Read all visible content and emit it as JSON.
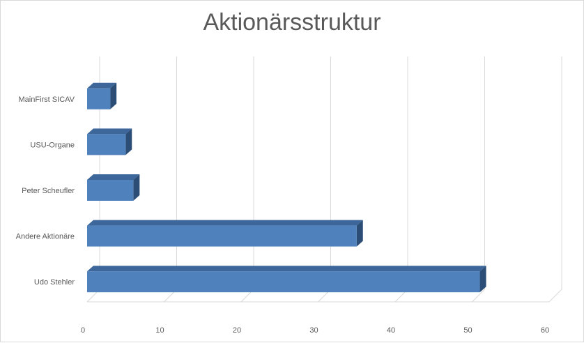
{
  "chart_data": {
    "type": "bar",
    "orientation": "horizontal",
    "style": "3d",
    "title": "Aktionärsstruktur",
    "xlabel": "",
    "ylabel": "",
    "categories": [
      "Udo Stehler",
      "Andere Aktionäre",
      "Peter Scheufler",
      "USU-Organe",
      "MainFirst SICAV"
    ],
    "values": [
      51,
      35,
      6,
      5,
      3
    ],
    "xlim": [
      0,
      60
    ],
    "x_ticks": [
      "0",
      "10",
      "20",
      "30",
      "40",
      "50",
      "60"
    ],
    "grid": true,
    "legend": "none",
    "colors": {
      "front": "#4f81bd",
      "top": "#3d669a",
      "side": "#2c4d76",
      "grid": "#d9d9d9",
      "text": "#595959"
    }
  }
}
